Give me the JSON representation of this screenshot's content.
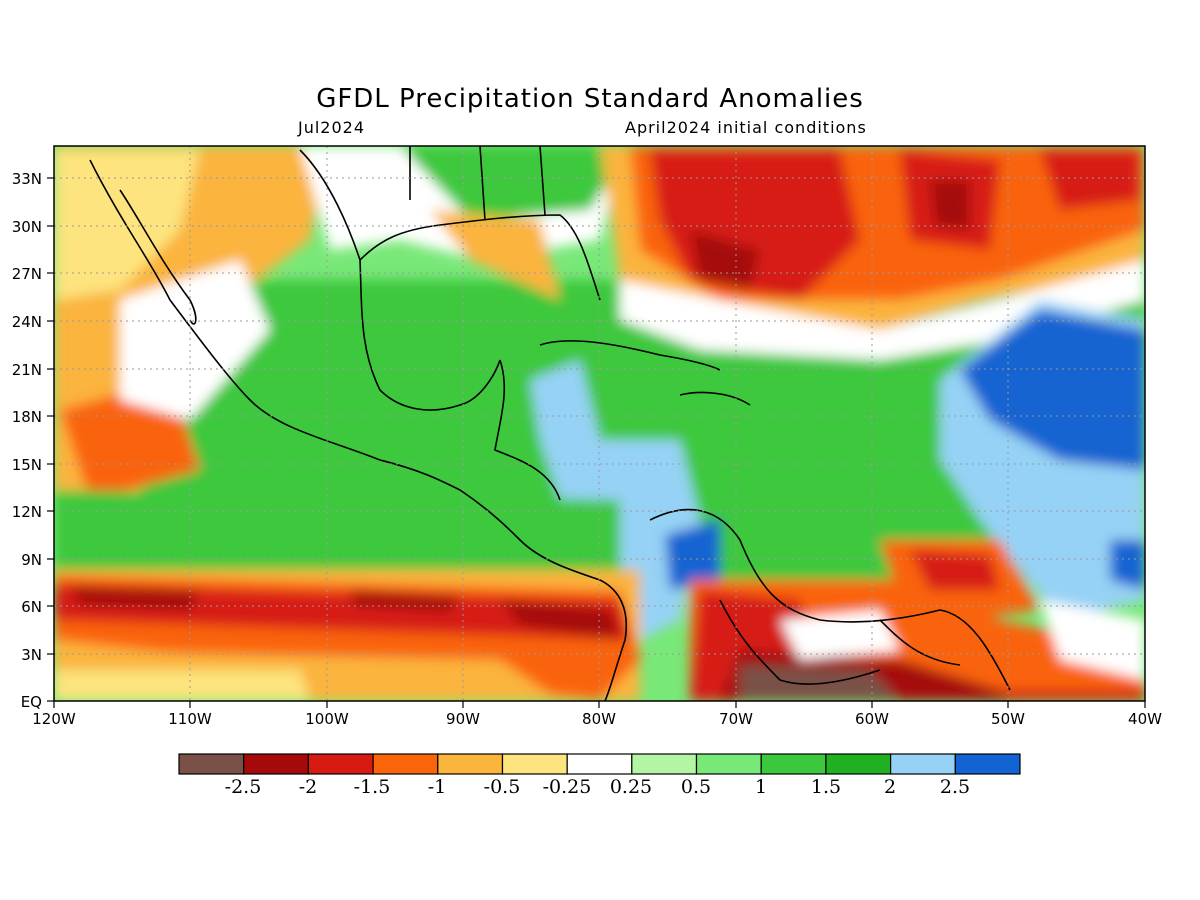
{
  "title": "GFDL Precipitation Standard Anomalies",
  "subtitle_left": "Jul2024",
  "subtitle_right": "April2024 initial conditions",
  "map": {
    "lon_range": [
      -120,
      -40
    ],
    "lat_range": [
      0,
      35
    ],
    "lon_ticks": [
      "120W",
      "110W",
      "100W",
      "90W",
      "80W",
      "70W",
      "60W",
      "50W",
      "40W"
    ],
    "lat_ticks": [
      "EQ",
      "3N",
      "6N",
      "9N",
      "12N",
      "15N",
      "18N",
      "21N",
      "24N",
      "27N",
      "30N",
      "33N"
    ],
    "gridlines": "dotted"
  },
  "colorbar": {
    "colors": [
      "#7a5147",
      "#a50a0a",
      "#d71a12",
      "#fa640a",
      "#fbb43c",
      "#fde47e",
      "#ffffff",
      "#b4f5a4",
      "#78e878",
      "#3cc83c",
      "#20b022",
      "#96d2f5",
      "#1264d2"
    ],
    "labels": [
      "-2.5",
      "-2",
      "-1.5",
      "-1",
      "-0.5",
      "-0.25",
      "0.25",
      "0.5",
      "1",
      "1.5",
      "2",
      "2.5"
    ]
  }
}
